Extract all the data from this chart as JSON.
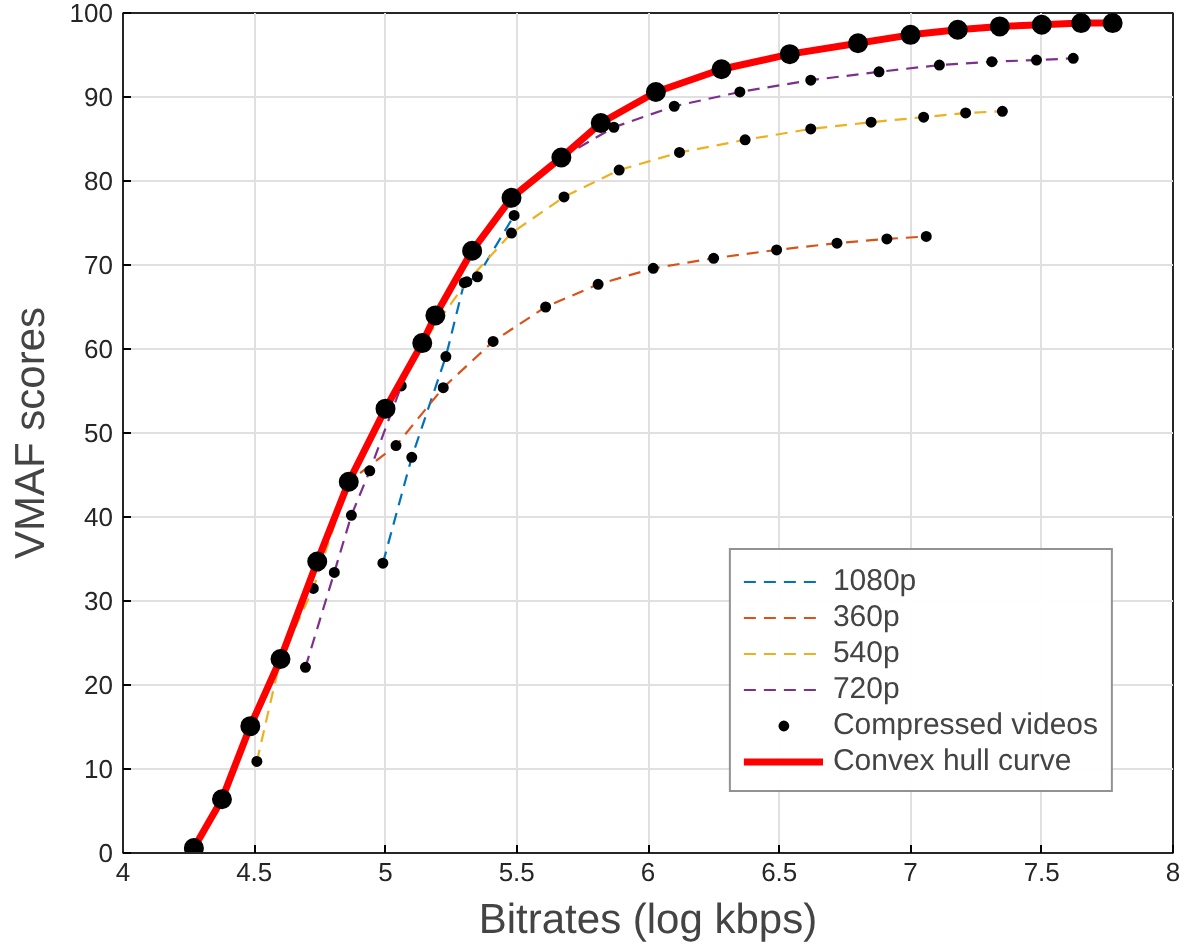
{
  "chart_data": {
    "type": "line",
    "xlabel": "Bitrates (log kbps)",
    "ylabel": "VMAF scores",
    "xlim": [
      4,
      8
    ],
    "ylim": [
      0,
      100
    ],
    "xticks": [
      4,
      4.5,
      5,
      5.5,
      6,
      6.5,
      7,
      7.5,
      8
    ],
    "yticks": [
      0,
      10,
      20,
      30,
      40,
      50,
      60,
      70,
      80,
      90,
      100
    ],
    "grid": true,
    "legend": "bottom right",
    "series": [
      {
        "name": "1080p",
        "color": "#0072bd",
        "line_style": "dashed",
        "marker": "none",
        "x": [
          4.99,
          5.1,
          5.23,
          5.3,
          5.35,
          5.49
        ],
        "values": [
          34.5,
          47.1,
          59.1,
          67.9,
          68.6,
          75.9
        ]
      },
      {
        "name": "360p",
        "color": "#d95319",
        "line_style": "dashed",
        "marker": "none",
        "x": [
          4.74,
          4.86,
          5.04,
          5.22,
          5.41,
          5.61,
          5.81,
          6.02,
          6.25,
          6.49,
          6.72,
          6.91,
          7.06
        ],
        "values": [
          34.7,
          44.2,
          48.5,
          55.4,
          60.9,
          65.0,
          67.7,
          69.6,
          70.8,
          71.8,
          72.6,
          73.1,
          73.4
        ]
      },
      {
        "name": "540p",
        "color": "#edb120",
        "line_style": "dashed",
        "marker": "none",
        "x": [
          4.51,
          4.6,
          4.725,
          4.86,
          5.0,
          5.14,
          5.31,
          5.48,
          5.68,
          5.89,
          6.12,
          6.37,
          6.62,
          6.85,
          7.05,
          7.21,
          7.35
        ],
        "values": [
          10.9,
          23.1,
          31.5,
          44.2,
          52.9,
          60.7,
          68.0,
          73.8,
          78.1,
          81.3,
          83.4,
          84.9,
          86.2,
          87.0,
          87.6,
          88.1,
          88.3
        ]
      },
      {
        "name": "720p",
        "color": "#7e2f8e",
        "line_style": "dashed",
        "marker": "none",
        "x": [
          4.695,
          4.805,
          4.87,
          4.94,
          5.06,
          5.19,
          5.33,
          5.48,
          5.67,
          5.87,
          6.1,
          6.35,
          6.62,
          6.88,
          7.11,
          7.31,
          7.48,
          7.62
        ],
        "values": [
          22.1,
          33.4,
          40.2,
          45.5,
          55.6,
          64.0,
          71.7,
          78.0,
          82.8,
          86.4,
          88.9,
          90.6,
          92.0,
          93.0,
          93.8,
          94.2,
          94.4,
          94.6
        ]
      },
      {
        "name": "Compressed videos",
        "type": "scatter",
        "color": "#000000",
        "marker": "circle",
        "x": [
          4.99,
          5.1,
          5.23,
          5.3,
          5.35,
          5.49,
          5.04,
          5.22,
          5.41,
          5.61,
          5.81,
          6.02,
          6.25,
          6.49,
          6.72,
          6.91,
          7.06,
          4.51,
          4.725,
          5.31,
          5.48,
          5.68,
          5.89,
          6.12,
          6.37,
          6.62,
          6.85,
          7.05,
          7.21,
          7.35,
          4.695,
          4.805,
          4.87,
          4.94,
          5.06,
          5.87,
          6.1,
          6.35,
          6.62,
          6.88,
          7.11,
          7.31,
          7.48,
          7.62
        ],
        "values": [
          34.5,
          47.1,
          59.1,
          67.9,
          68.6,
          75.9,
          48.5,
          55.4,
          60.9,
          65.0,
          67.7,
          69.6,
          70.8,
          71.8,
          72.6,
          73.1,
          73.4,
          10.9,
          31.5,
          68.0,
          73.8,
          78.1,
          81.3,
          83.4,
          84.9,
          86.2,
          87.0,
          87.6,
          88.1,
          88.3,
          22.1,
          33.4,
          40.2,
          45.5,
          55.6,
          86.4,
          88.9,
          90.6,
          92.0,
          93.0,
          93.8,
          94.2,
          94.4,
          94.6
        ]
      },
      {
        "name": "Convex hull curve",
        "color": "#ff0000",
        "line_style": "solid",
        "marker": "circle",
        "x": [
          4.27,
          4.377,
          4.485,
          4.6,
          4.74,
          4.86,
          5.0,
          5.14,
          5.19,
          5.33,
          5.48,
          5.67,
          5.82,
          6.03,
          6.28,
          6.54,
          6.8,
          7.0,
          7.18,
          7.34,
          7.5,
          7.65,
          7.77
        ],
        "values": [
          0.6,
          6.4,
          15.1,
          23.1,
          34.7,
          44.2,
          52.9,
          60.7,
          64.0,
          71.7,
          78.0,
          82.8,
          86.9,
          90.6,
          93.3,
          95.1,
          96.4,
          97.4,
          98.0,
          98.4,
          98.6,
          98.8,
          98.8
        ]
      }
    ]
  }
}
